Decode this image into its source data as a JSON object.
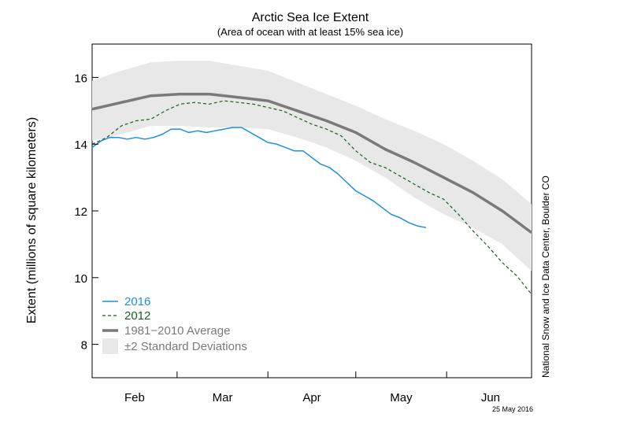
{
  "chart_data": {
    "type": "line",
    "title": "Arctic Sea Ice Extent",
    "subtitle": "(Area of ocean with at least 15% sea ice)",
    "ylabel": "Extent (millions of square kilometers)",
    "xlabel": "",
    "ylim": [
      7,
      17
    ],
    "yticks": [
      8,
      10,
      12,
      14,
      16
    ],
    "xlim": [
      0,
      150
    ],
    "xtick_boundaries": [
      0,
      29,
      60,
      90,
      121,
      151
    ],
    "months": [
      "Feb",
      "Mar",
      "Apr",
      "May",
      "Jun"
    ],
    "grid": false,
    "legend_position": "bottom-left",
    "credit": "National Snow and Ice Data Center, Boulder CO",
    "date": "25 May 2016",
    "series": [
      {
        "name": "2016",
        "color": "#1a8fe3",
        "style": "solid",
        "x": [
          0,
          3,
          6,
          9,
          12,
          15,
          18,
          21,
          24,
          27,
          30,
          33,
          36,
          39,
          42,
          45,
          48,
          51,
          54,
          57,
          60,
          63,
          66,
          69,
          72,
          75,
          78,
          81,
          84,
          87,
          90,
          93,
          96,
          99,
          102,
          105,
          108,
          111,
          114
        ],
        "values": [
          13.9,
          14.1,
          14.2,
          14.2,
          14.15,
          14.2,
          14.15,
          14.2,
          14.3,
          14.45,
          14.45,
          14.35,
          14.4,
          14.35,
          14.4,
          14.45,
          14.5,
          14.5,
          14.35,
          14.2,
          14.05,
          14.0,
          13.9,
          13.8,
          13.8,
          13.6,
          13.4,
          13.3,
          13.1,
          12.85,
          12.6,
          12.45,
          12.3,
          12.1,
          11.9,
          11.8,
          11.65,
          11.55,
          11.5
        ]
      },
      {
        "name": "2012",
        "color": "#1b5e20",
        "style": "dashed",
        "x": [
          0,
          5,
          10,
          15,
          20,
          25,
          30,
          35,
          40,
          45,
          50,
          55,
          60,
          65,
          70,
          75,
          80,
          85,
          90,
          95,
          100,
          105,
          110,
          115,
          120,
          125,
          130,
          135,
          140,
          145,
          150
        ],
        "values": [
          14.0,
          14.2,
          14.55,
          14.7,
          14.75,
          15.0,
          15.2,
          15.25,
          15.2,
          15.3,
          15.25,
          15.2,
          15.1,
          15.0,
          14.8,
          14.6,
          14.45,
          14.25,
          13.8,
          13.45,
          13.3,
          13.05,
          12.8,
          12.55,
          12.35,
          11.9,
          11.4,
          10.95,
          10.45,
          10.05,
          9.5
        ]
      },
      {
        "name": "1981−2010 Average",
        "color": "#7a7a7a",
        "style": "solid",
        "x": [
          0,
          10,
          20,
          30,
          40,
          50,
          60,
          70,
          80,
          90,
          100,
          110,
          120,
          130,
          140,
          150
        ],
        "values": [
          15.05,
          15.25,
          15.45,
          15.5,
          15.5,
          15.4,
          15.3,
          15.0,
          14.7,
          14.35,
          13.85,
          13.45,
          13.0,
          12.55,
          12.0,
          11.35
        ]
      }
    ],
    "band": {
      "name": "±2 Standard Deviations",
      "color": "#e8e8e8",
      "x": [
        0,
        10,
        20,
        30,
        40,
        50,
        60,
        70,
        80,
        90,
        100,
        110,
        120,
        130,
        140,
        150
      ],
      "lower": [
        14.1,
        14.3,
        14.55,
        14.55,
        14.5,
        14.5,
        14.45,
        14.2,
        13.9,
        13.5,
        13.0,
        12.4,
        11.9,
        11.5,
        11.0,
        10.2
      ],
      "upper": [
        15.9,
        16.2,
        16.45,
        16.5,
        16.5,
        16.35,
        16.2,
        15.85,
        15.5,
        15.15,
        14.75,
        14.4,
        14.0,
        13.5,
        12.95,
        12.2
      ]
    }
  }
}
